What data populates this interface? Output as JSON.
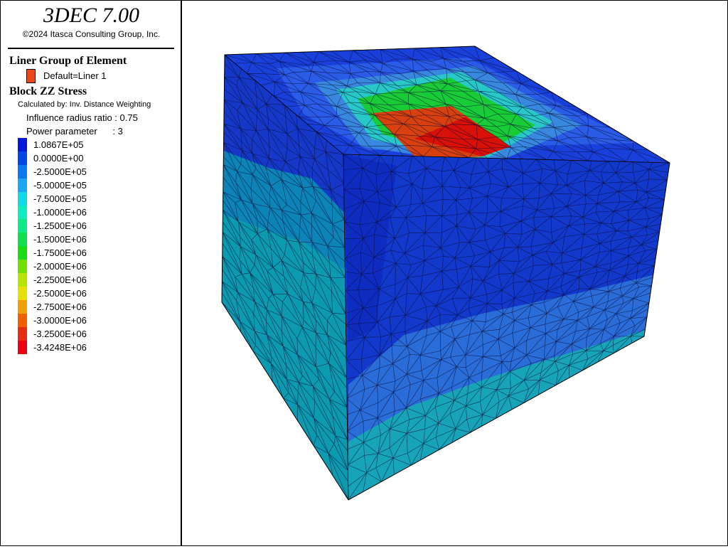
{
  "app": {
    "title": "3DEC 7.00",
    "copyright": "©2024 Itasca Consulting Group, Inc."
  },
  "legend": {
    "liner_section": "Liner Group of Element",
    "liner_item": "Default=Liner 1",
    "liner_color": "#e8481a",
    "stress_section": "Block  ZZ Stress",
    "calc_method": "Calculated by: Inv. Distance Weighting",
    "influence": "Influence radius ratio : 0.75",
    "power": "Power parameter      : 3",
    "contours": [
      {
        "label": "1.0867E+05",
        "color": "#0018d8"
      },
      {
        "label": "0.0000E+00",
        "color": "#0046e8"
      },
      {
        "label": "-2.5000E+05",
        "color": "#0a78f0"
      },
      {
        "label": "-5.0000E+05",
        "color": "#19a8f4"
      },
      {
        "label": "-7.5000E+05",
        "color": "#14d8e8"
      },
      {
        "label": "-1.0000E+06",
        "color": "#10ecc0"
      },
      {
        "label": "-1.2500E+06",
        "color": "#10e88c"
      },
      {
        "label": "-1.5000E+06",
        "color": "#10e050"
      },
      {
        "label": "-1.7500E+06",
        "color": "#18dc14"
      },
      {
        "label": "-2.0000E+06",
        "color": "#70e000"
      },
      {
        "label": "-2.2500E+06",
        "color": "#b8e400"
      },
      {
        "label": "-2.5000E+06",
        "color": "#e8e000"
      },
      {
        "label": "-2.7500E+06",
        "color": "#f0a000"
      },
      {
        "label": "-3.0000E+06",
        "color": "#f06000"
      },
      {
        "label": "-3.2500E+06",
        "color": "#e82c10"
      },
      {
        "label": "-3.4248E+06",
        "color": "#f00010"
      }
    ]
  },
  "model": {
    "colors": {
      "top_base": "#1a40dc",
      "top_light": "#2a5ce8",
      "left_upper": "#1638c8",
      "left_mid": "#0c84b8",
      "left_lower": "#0c9ab0",
      "right_upper": "#1238cc",
      "right_mid": "#2a6cd8",
      "right_lower": "#18a4b8",
      "pit": "#0f2cc0",
      "green_ring": "#18cc38",
      "cyan_ring": "#28c8c8",
      "light_ring": "#3888e0",
      "liner_red": "#d84010",
      "liner_dark": "#d81008",
      "mesh_line": "#0a0a30"
    }
  }
}
